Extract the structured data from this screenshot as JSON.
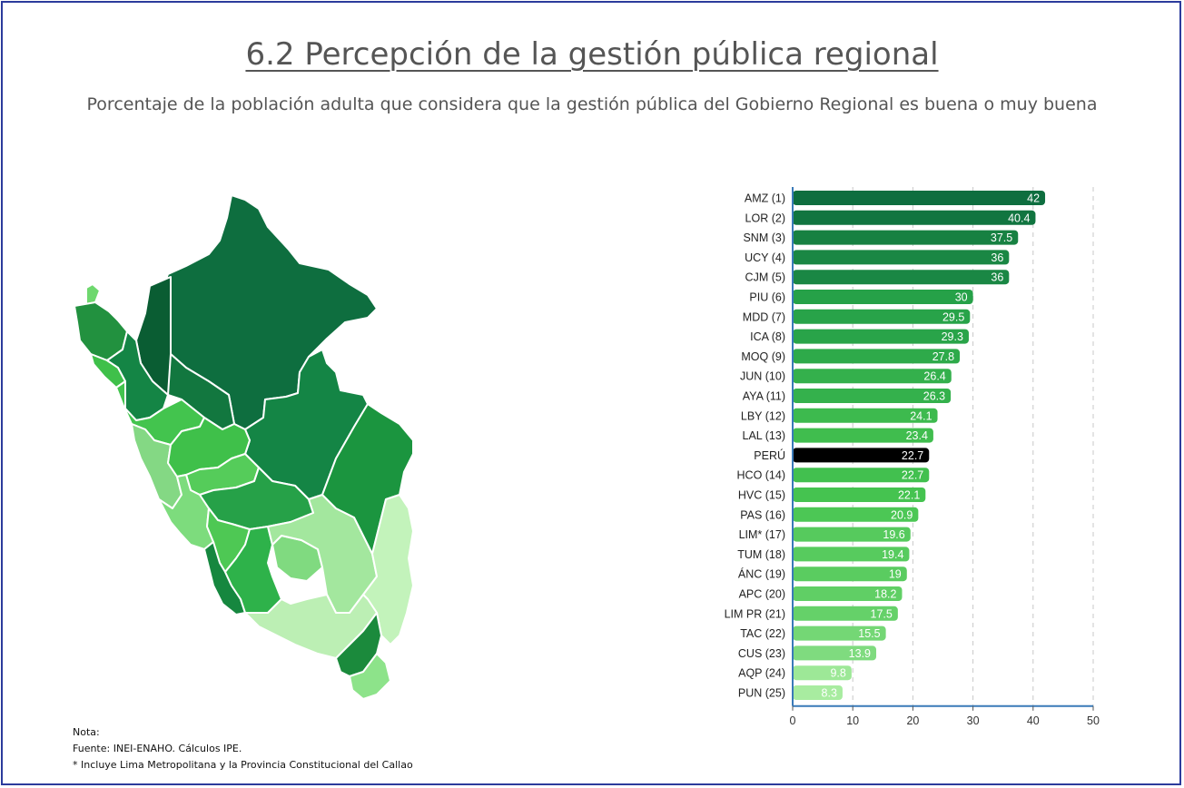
{
  "header": {
    "title": "6.2 Percepción de la gestión pública regional",
    "subtitle": "Porcentaje de la población adulta que considera que la gestión pública del Gobierno Regional es buena o muy buena"
  },
  "notes": {
    "label": "Nota:",
    "source": "Fuente: INEI-ENAHO. Cálculos IPE.",
    "footnote": "* Incluye Lima Metropolitana y la Provincia Constitucional del Callao"
  },
  "colors": {
    "dark_green": "#0e6e3f",
    "mid_green": "#27a24a",
    "light_green": "#8fe08f",
    "highlight": "#000000",
    "axis": "#3a7ab8"
  },
  "chart_data": {
    "type": "bar",
    "orientation": "horizontal",
    "categories": [
      "AMZ (1)",
      "LOR (2)",
      "SNM (3)",
      "UCY (4)",
      "CJM (5)",
      "PIU (6)",
      "MDD (7)",
      "ICA (8)",
      "MOQ (9)",
      "JUN (10)",
      "AYA (11)",
      "LBY (12)",
      "LAL (13)",
      "PERÚ",
      "HCO (14)",
      "HVC (15)",
      "PAS (16)",
      "LIM* (17)",
      "TUM (18)",
      "ÁNC (19)",
      "APC (20)",
      "LIM PR (21)",
      "TAC (22)",
      "CUS (23)",
      "AQP (24)",
      "PUN (25)"
    ],
    "values": [
      42,
      40.4,
      37.5,
      36,
      36,
      30,
      29.5,
      29.3,
      27.8,
      26.4,
      26.3,
      24.1,
      23.4,
      22.7,
      22.7,
      22.1,
      20.9,
      19.6,
      19.4,
      19,
      18.2,
      17.5,
      15.5,
      13.9,
      9.8,
      8.3
    ],
    "highlight": "PERÚ",
    "xlim": [
      0,
      50
    ],
    "xticks": [
      0,
      10,
      20,
      30,
      40,
      50
    ],
    "grid": "vertical dashed"
  }
}
